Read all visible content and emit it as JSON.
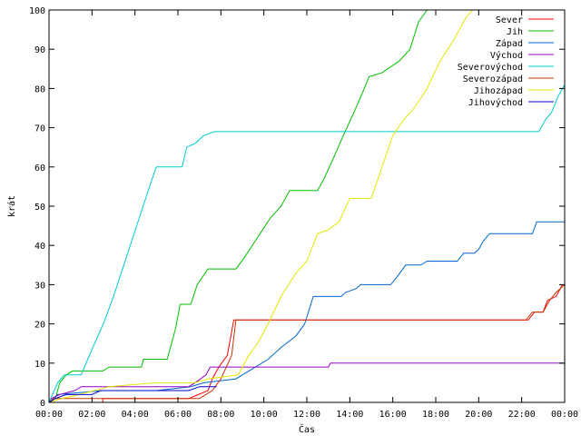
{
  "chart_data": {
    "type": "line",
    "xlabel": "Čas",
    "ylabel": "krát",
    "xlim": [
      0,
      24
    ],
    "ylim": [
      0,
      100
    ],
    "grid": false,
    "legend_position": "top-right",
    "x_ticks": [
      {
        "v": 0,
        "label": "00:00"
      },
      {
        "v": 2,
        "label": "02:00"
      },
      {
        "v": 4,
        "label": "04:00"
      },
      {
        "v": 6,
        "label": "06:00"
      },
      {
        "v": 8,
        "label": "08:00"
      },
      {
        "v": 10,
        "label": "10:00"
      },
      {
        "v": 12,
        "label": "12:00"
      },
      {
        "v": 14,
        "label": "14:00"
      },
      {
        "v": 16,
        "label": "16:00"
      },
      {
        "v": 18,
        "label": "18:00"
      },
      {
        "v": 20,
        "label": "20:00"
      },
      {
        "v": 22,
        "label": "22:00"
      },
      {
        "v": 24,
        "label": "00:00"
      }
    ],
    "y_ticks": [
      {
        "v": 0,
        "label": "0"
      },
      {
        "v": 10,
        "label": "10"
      },
      {
        "v": 20,
        "label": "20"
      },
      {
        "v": 30,
        "label": "30"
      },
      {
        "v": 40,
        "label": "40"
      },
      {
        "v": 50,
        "label": "50"
      },
      {
        "v": 60,
        "label": "60"
      },
      {
        "v": 70,
        "label": "70"
      },
      {
        "v": 80,
        "label": "80"
      },
      {
        "v": 90,
        "label": "90"
      },
      {
        "v": 100,
        "label": "100"
      }
    ],
    "series": [
      {
        "name": "Sever",
        "color": "#ff0000",
        "points": [
          [
            0,
            0
          ],
          [
            2.5,
            0
          ],
          [
            2.5,
            1
          ],
          [
            6.5,
            1
          ],
          [
            7.4,
            3
          ],
          [
            7.6,
            6
          ],
          [
            7.9,
            9
          ],
          [
            8.3,
            12
          ],
          [
            8.6,
            21
          ],
          [
            20,
            21
          ],
          [
            22.3,
            21
          ],
          [
            22.6,
            23
          ],
          [
            23,
            23
          ],
          [
            23.2,
            26
          ],
          [
            23.6,
            27
          ],
          [
            23.9,
            30
          ]
        ]
      },
      {
        "name": "Jih",
        "color": "#00c000",
        "points": [
          [
            0,
            0
          ],
          [
            0.3,
            1
          ],
          [
            0.5,
            5
          ],
          [
            0.8,
            7
          ],
          [
            1.1,
            8
          ],
          [
            2.5,
            8
          ],
          [
            2.8,
            9
          ],
          [
            4.3,
            9
          ],
          [
            4.4,
            11
          ],
          [
            5.5,
            11
          ],
          [
            5.9,
            19
          ],
          [
            6.1,
            25
          ],
          [
            6.6,
            25
          ],
          [
            6.9,
            30
          ],
          [
            7.4,
            34
          ],
          [
            8.7,
            34
          ],
          [
            9.1,
            37
          ],
          [
            9.7,
            42
          ],
          [
            10.3,
            47
          ],
          [
            10.8,
            50
          ],
          [
            11.2,
            54
          ],
          [
            12.5,
            54
          ],
          [
            12.8,
            57
          ],
          [
            13.3,
            63
          ],
          [
            13.7,
            68
          ],
          [
            14.2,
            74
          ],
          [
            14.6,
            79
          ],
          [
            14.9,
            83
          ],
          [
            15.5,
            84
          ],
          [
            16.3,
            87
          ],
          [
            16.8,
            90
          ],
          [
            17.2,
            97
          ],
          [
            17.6,
            100
          ],
          [
            18,
            100
          ]
        ]
      },
      {
        "name": "Západ",
        "color": "#0066cc",
        "points": [
          [
            0,
            0
          ],
          [
            0.4,
            2
          ],
          [
            2.5,
            3
          ],
          [
            5,
            3
          ],
          [
            6.6,
            4
          ],
          [
            7.2,
            5
          ],
          [
            8.7,
            6
          ],
          [
            9.3,
            8
          ],
          [
            10.2,
            11
          ],
          [
            10.8,
            14
          ],
          [
            11.5,
            17
          ],
          [
            11.9,
            20
          ],
          [
            12.3,
            27
          ],
          [
            13.6,
            27
          ],
          [
            13.8,
            28
          ],
          [
            14.3,
            29
          ],
          [
            14.5,
            30
          ],
          [
            15.9,
            30
          ],
          [
            16.2,
            32
          ],
          [
            16.6,
            35
          ],
          [
            17.3,
            35
          ],
          [
            17.6,
            36
          ],
          [
            19,
            36
          ],
          [
            19.3,
            38
          ],
          [
            19.8,
            38
          ],
          [
            20,
            39
          ],
          [
            20.2,
            41
          ],
          [
            20.5,
            43
          ],
          [
            22.5,
            43
          ],
          [
            22.7,
            46
          ],
          [
            24,
            46
          ]
        ]
      },
      {
        "name": "Východ",
        "color": "#9900cc",
        "points": [
          [
            0,
            0
          ],
          [
            0.1,
            1
          ],
          [
            0.5,
            2
          ],
          [
            1.2,
            3
          ],
          [
            1.5,
            4
          ],
          [
            6.5,
            4
          ],
          [
            6.8,
            5
          ],
          [
            7.3,
            7
          ],
          [
            7.5,
            9
          ],
          [
            8,
            9
          ],
          [
            10.5,
            9
          ],
          [
            13,
            9
          ],
          [
            13.1,
            10
          ],
          [
            18,
            10
          ],
          [
            24,
            10
          ]
        ]
      },
      {
        "name": "Severovýchod",
        "color": "#00cccc",
        "points": [
          [
            0,
            0
          ],
          [
            0.4,
            5
          ],
          [
            0.7,
            7
          ],
          [
            1.5,
            7
          ],
          [
            1.8,
            11
          ],
          [
            2.2,
            16
          ],
          [
            2.6,
            21
          ],
          [
            3,
            27
          ],
          [
            3.3,
            32
          ],
          [
            3.6,
            37
          ],
          [
            3.9,
            42
          ],
          [
            4.2,
            47
          ],
          [
            4.5,
            52
          ],
          [
            4.8,
            57
          ],
          [
            5,
            60
          ],
          [
            6.2,
            60
          ],
          [
            6.4,
            65
          ],
          [
            6.8,
            66
          ],
          [
            7.2,
            68
          ],
          [
            7.7,
            69
          ],
          [
            14,
            69
          ],
          [
            20,
            69
          ],
          [
            22.8,
            69
          ],
          [
            23.1,
            72
          ],
          [
            23.4,
            74
          ],
          [
            23.7,
            78
          ],
          [
            24,
            81
          ]
        ]
      },
      {
        "name": "Severozápad",
        "color": "#cc3300",
        "points": [
          [
            0,
            0
          ],
          [
            0.2,
            1
          ],
          [
            7,
            1
          ],
          [
            7.6,
            3
          ],
          [
            8,
            6
          ],
          [
            8.5,
            12
          ],
          [
            8.7,
            21
          ],
          [
            12,
            21
          ],
          [
            22.2,
            21
          ],
          [
            22.5,
            23
          ],
          [
            23,
            23
          ],
          [
            23.3,
            26
          ],
          [
            23.6,
            28
          ],
          [
            24,
            30
          ]
        ]
      },
      {
        "name": "Jihozápad",
        "color": "#e6e600",
        "points": [
          [
            0,
            0
          ],
          [
            0.6,
            1
          ],
          [
            1.4,
            2
          ],
          [
            2.8,
            4
          ],
          [
            5,
            5
          ],
          [
            6.8,
            5
          ],
          [
            7.4,
            6
          ],
          [
            8.8,
            7
          ],
          [
            9.3,
            12
          ],
          [
            9.7,
            15
          ],
          [
            10.2,
            20
          ],
          [
            10.8,
            27
          ],
          [
            11.5,
            33
          ],
          [
            12,
            36
          ],
          [
            12.5,
            43
          ],
          [
            13,
            44
          ],
          [
            13.5,
            46
          ],
          [
            14,
            52
          ],
          [
            15,
            52
          ],
          [
            15.5,
            60
          ],
          [
            16,
            68
          ],
          [
            16.5,
            72
          ],
          [
            17,
            75
          ],
          [
            17.6,
            80
          ],
          [
            18.2,
            87
          ],
          [
            18.8,
            92
          ],
          [
            19.4,
            98
          ],
          [
            19.7,
            100
          ],
          [
            20,
            100
          ]
        ]
      },
      {
        "name": "Jihovýchod",
        "color": "#0000cc",
        "points": [
          [
            0,
            0
          ],
          [
            0.3,
            1
          ],
          [
            0.8,
            2
          ],
          [
            2,
            2
          ],
          [
            2.4,
            3
          ],
          [
            6.5,
            3
          ],
          [
            7,
            4
          ],
          [
            7.8,
            4
          ]
        ]
      }
    ]
  }
}
